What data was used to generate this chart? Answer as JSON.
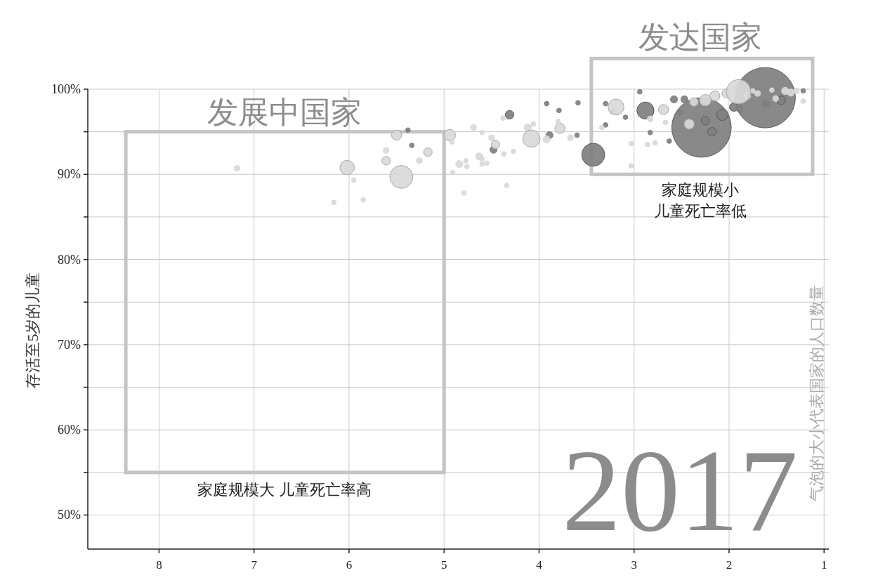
{
  "chart_data": {
    "type": "bubble",
    "ylabel": "存活至5岁的儿童",
    "annotations": [
      "发达国家",
      "发展中国家",
      "家庭规模小",
      "儿童死亡率低",
      "家庭规模大 儿童死亡率高",
      "2017",
      "气泡的大小代表国家的人口数量"
    ],
    "xlim": [
      8.75,
      0.95
    ],
    "ylim": [
      46,
      100
    ],
    "xticks": [
      8,
      7,
      6,
      5,
      4,
      3,
      2,
      1
    ],
    "yticks": [
      {
        "value": 50,
        "label": "50%"
      },
      {
        "value": 55,
        "label": null
      },
      {
        "value": 60,
        "label": "60%"
      },
      {
        "value": 65,
        "label": null
      },
      {
        "value": 70,
        "label": "70%"
      },
      {
        "value": 75,
        "label": null
      },
      {
        "value": 80,
        "label": "80%"
      },
      {
        "value": 85,
        "label": null
      },
      {
        "value": 90,
        "label": "90%"
      },
      {
        "value": 95,
        "label": null
      },
      {
        "value": 100,
        "label": "100%"
      }
    ],
    "grid": true,
    "series": [
      {
        "color": "#7f7f7f",
        "x": [
          1.62,
          2.29,
          3.43,
          2.88,
          4.31,
          4.48,
          3.89,
          2.58,
          2.47,
          2.52,
          2.25,
          2.18,
          2.07,
          1.95,
          1.89,
          1.61,
          1.45,
          1.22,
          3.3,
          3.23,
          3.09,
          3.3,
          2.94,
          2.83,
          2.63,
          3.92,
          3.79,
          3.59,
          3.6,
          5.38,
          5.34
        ],
        "values": [
          99.0,
          95.5,
          92.3,
          97.5,
          97.0,
          92.9,
          94.6,
          98.8,
          98.8,
          97.3,
          96.3,
          95.0,
          97.0,
          97.9,
          97.7,
          98.3,
          98.7,
          99.8,
          98.3,
          97.4,
          96.7,
          95.8,
          99.7,
          94.9,
          93.9,
          98.3,
          97.5,
          98.4,
          94.6,
          95.2,
          93.4
        ],
        "sizes": [
          1,
          0.97,
          0.145,
          0.08,
          0.02,
          0.014,
          0.014,
          0.014,
          0.014,
          0.009,
          0.02,
          0.02,
          0.036,
          0.02,
          0.014,
          0.014,
          0.02,
          0.006,
          0.006,
          0.006,
          0.006,
          0.006,
          0.006,
          0.006,
          0.006,
          0.006,
          0.006,
          0.006,
          0.006,
          0.006,
          0.006
        ]
      },
      {
        "color": "#d9d9d9",
        "x": [
          7.18,
          6.02,
          5.95,
          6.16,
          5.85,
          5.5,
          5.61,
          5.61,
          5.45,
          5.26,
          5.17,
          4.94,
          4.92,
          4.91,
          4.69,
          4.6,
          4.5,
          4.46,
          4.84,
          4.77,
          4.76,
          4.63,
          4.6,
          4.6,
          4.55,
          4.37,
          4.27,
          4.34,
          4.79,
          4.12,
          4.06,
          4.08,
          3.92,
          3.78,
          3.8,
          3.67,
          3.19,
          3.34,
          2.83,
          2.69,
          2.67,
          2.86,
          2.78,
          3.03,
          3.03,
          2.15,
          2.03,
          2.25,
          2.37,
          2.42,
          1.81,
          1.7,
          1.51,
          1.41,
          1.35,
          1.29,
          1.22,
          1.95,
          1.75,
          1.55,
          1.9,
          4.38
        ],
        "values": [
          90.7,
          90.8,
          89.3,
          86.7,
          87.0,
          94.6,
          92.8,
          91.6,
          89.7,
          91.6,
          92.6,
          94.6,
          93.8,
          90.2,
          95.5,
          94.9,
          94.3,
          93.5,
          91.2,
          91.6,
          90.9,
          92.1,
          91.8,
          91.2,
          91.3,
          92.4,
          92.7,
          88.7,
          87.8,
          95.5,
          95.9,
          94.2,
          94.1,
          95.4,
          96.2,
          94.3,
          97.9,
          95.5,
          96.5,
          97.6,
          96.1,
          93.5,
          93.7,
          93.6,
          91.0,
          99.2,
          99.5,
          98.7,
          98.5,
          95.9,
          99.2,
          99.5,
          98.9,
          99.8,
          99.6,
          99.8,
          98.6,
          99.8,
          99.8,
          99.9,
          99.7,
          96.6
        ],
        "sizes": [
          0.009,
          0.057,
          0.006,
          0.006,
          0.006,
          0.028,
          0.009,
          0.02,
          0.145,
          0.009,
          0.02,
          0.036,
          0.006,
          0.006,
          0.009,
          0.006,
          0.009,
          0.02,
          0.014,
          0.006,
          0.006,
          0.014,
          0.006,
          0.006,
          0.006,
          0.006,
          0.006,
          0.006,
          0.006,
          0.014,
          0.006,
          0.082,
          0.014,
          0.028,
          0.006,
          0.009,
          0.069,
          0.006,
          0.009,
          0.028,
          0.006,
          0.006,
          0.006,
          0.006,
          0.006,
          0.028,
          0.02,
          0.036,
          0.02,
          0.028,
          0.014,
          0.009,
          0.009,
          0.014,
          0.014,
          0.009,
          0.006,
          0.009,
          0.006,
          0.006,
          0.16,
          0.006
        ]
      }
    ]
  }
}
